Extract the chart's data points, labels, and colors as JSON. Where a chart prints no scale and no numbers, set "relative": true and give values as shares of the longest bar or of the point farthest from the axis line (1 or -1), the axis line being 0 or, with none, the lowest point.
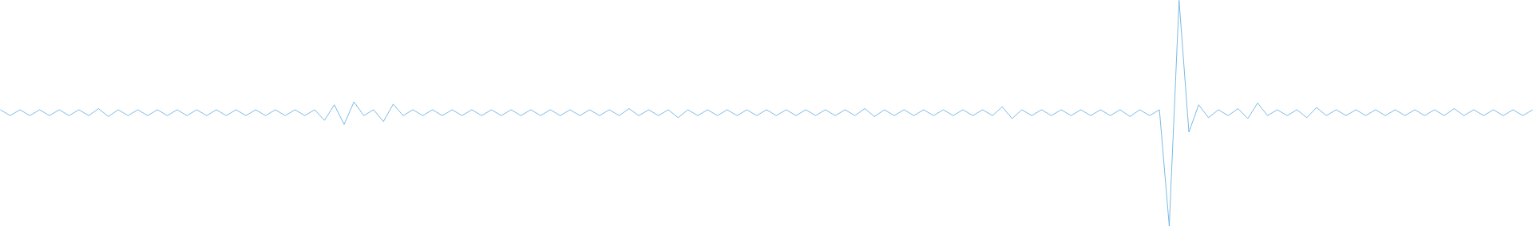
{
  "chart_data": {
    "type": "line",
    "relative": true,
    "color": "#5aa9e0",
    "categories": [
      null,
      null,
      null,
      null,
      null,
      null,
      null,
      null,
      null,
      null,
      null,
      null,
      null,
      null,
      null,
      null,
      null,
      null,
      null,
      null,
      null,
      null,
      null,
      null,
      null,
      null,
      null,
      null,
      null,
      null,
      null,
      null,
      null,
      null,
      null,
      null,
      null,
      null,
      null,
      null,
      null,
      null,
      null,
      null,
      null,
      null,
      null,
      null,
      null,
      null,
      null,
      null,
      null,
      null,
      null,
      null,
      null,
      null,
      null,
      null,
      null,
      null,
      null,
      null,
      null,
      null,
      null,
      null,
      null,
      null,
      null,
      null,
      null,
      null,
      null,
      null,
      null,
      null,
      null,
      null,
      null,
      null,
      null,
      null,
      null,
      null,
      null,
      null,
      null,
      null,
      null,
      null,
      null,
      null,
      null,
      null,
      null,
      null,
      null,
      null,
      null,
      null,
      null,
      null,
      null,
      null,
      null,
      null,
      null,
      null,
      null,
      null,
      null,
      null,
      null,
      null,
      null,
      null,
      null,
      null,
      null,
      null,
      null,
      null,
      null,
      null,
      null,
      null,
      null,
      null,
      null,
      null,
      null,
      null,
      null,
      null,
      null,
      null,
      null,
      null,
      null,
      null,
      null,
      null,
      null,
      null,
      null,
      null,
      null,
      null,
      null,
      null,
      null,
      null,
      null,
      null,
      null
    ],
    "values": [
      0.515,
      0.489,
      0.515,
      0.489,
      0.515,
      0.489,
      0.515,
      0.489,
      0.515,
      0.489,
      0.52,
      0.485,
      0.515,
      0.489,
      0.515,
      0.489,
      0.515,
      0.489,
      0.515,
      0.489,
      0.515,
      0.489,
      0.515,
      0.489,
      0.515,
      0.489,
      0.515,
      0.489,
      0.515,
      0.489,
      0.515,
      0.489,
      0.515,
      0.468,
      0.537,
      0.45,
      0.55,
      0.489,
      0.515,
      0.463,
      0.54,
      0.489,
      0.515,
      0.489,
      0.515,
      0.489,
      0.515,
      0.489,
      0.515,
      0.489,
      0.515,
      0.489,
      0.515,
      0.489,
      0.515,
      0.489,
      0.515,
      0.489,
      0.515,
      0.489,
      0.515,
      0.489,
      0.515,
      0.489,
      0.52,
      0.489,
      0.515,
      0.489,
      0.515,
      0.48,
      0.515,
      0.489,
      0.515,
      0.489,
      0.515,
      0.489,
      0.515,
      0.489,
      0.515,
      0.489,
      0.515,
      0.489,
      0.515,
      0.489,
      0.515,
      0.489,
      0.515,
      0.489,
      0.52,
      0.485,
      0.515,
      0.489,
      0.515,
      0.489,
      0.515,
      0.489,
      0.515,
      0.489,
      0.515,
      0.489,
      0.515,
      0.489,
      0.528,
      0.476,
      0.515,
      0.489,
      0.515,
      0.489,
      0.515,
      0.489,
      0.515,
      0.489,
      0.515,
      0.489,
      0.515,
      0.485,
      0.515,
      0.489,
      0.515,
      0,
      1,
      0.416,
      0.537,
      0.48,
      0.515,
      0.489,
      0.52,
      0.476,
      0.545,
      0.489,
      0.515,
      0.489,
      0.515,
      0.48,
      0.525,
      0.489,
      0.515,
      0.489,
      0.515,
      0.489,
      0.515,
      0.489,
      0.515,
      0.489,
      0.515,
      0.489,
      0.515,
      0.489,
      0.52,
      0.489,
      0.515,
      0.489,
      0.515,
      0.489,
      0.515,
      0.489,
      0.515
    ]
  }
}
